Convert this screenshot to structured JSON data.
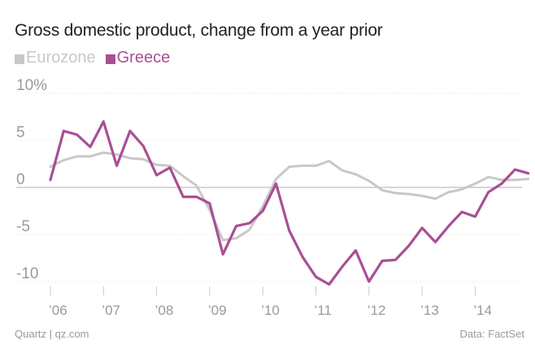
{
  "chart_data": {
    "type": "line",
    "title": "Gross domestic product, change from a year prior",
    "x_tick_labels": [
      "’06",
      "’07",
      "’08",
      "’09",
      "’10",
      "’11",
      "’12",
      "’13",
      "’14"
    ],
    "y_ticks": [
      {
        "value": 10,
        "label": "10%"
      },
      {
        "value": 5,
        "label": "5"
      },
      {
        "value": 0,
        "label": "0"
      },
      {
        "value": -5,
        "label": "-5"
      },
      {
        "value": -10,
        "label": "-10"
      }
    ],
    "ylim": [
      -12.5,
      11
    ],
    "xlim": [
      2006,
      2015.3
    ],
    "grid": "horizontal",
    "legend_position": "top-left",
    "series": [
      {
        "name": "Eurozone",
        "color": "#c8c8c8",
        "x": [
          2006.0,
          2006.25,
          2006.5,
          2006.75,
          2007.0,
          2007.25,
          2007.5,
          2007.75,
          2008.0,
          2008.25,
          2008.5,
          2008.75,
          2009.0,
          2009.25,
          2009.5,
          2009.75,
          2010.0,
          2010.25,
          2010.5,
          2010.75,
          2011.0,
          2011.25,
          2011.5,
          2011.75,
          2012.0,
          2012.25,
          2012.5,
          2012.75,
          2013.0,
          2013.25,
          2013.5,
          2013.75,
          2014.0,
          2014.25,
          2014.5,
          2014.75,
          2015.0
        ],
        "values": [
          2.2,
          2.9,
          3.3,
          3.3,
          3.7,
          3.5,
          3.1,
          3.0,
          2.4,
          2.3,
          1.2,
          0.2,
          -2.4,
          -5.6,
          -5.4,
          -4.5,
          -2.0,
          0.9,
          2.2,
          2.3,
          2.3,
          2.8,
          1.8,
          1.4,
          0.7,
          -0.3,
          -0.6,
          -0.7,
          -0.9,
          -1.2,
          -0.5,
          -0.2,
          0.4,
          1.1,
          0.8,
          0.8,
          0.9
        ]
      },
      {
        "name": "Greece",
        "color": "#a94f94",
        "x": [
          2006.0,
          2006.25,
          2006.5,
          2006.75,
          2007.0,
          2007.25,
          2007.5,
          2007.75,
          2008.0,
          2008.25,
          2008.5,
          2008.75,
          2009.0,
          2009.25,
          2009.5,
          2009.75,
          2010.0,
          2010.25,
          2010.5,
          2010.75,
          2011.0,
          2011.25,
          2011.5,
          2011.75,
          2012.0,
          2012.25,
          2012.5,
          2012.75,
          2013.0,
          2013.25,
          2013.5,
          2013.75,
          2014.0,
          2014.25,
          2014.5,
          2014.75,
          2015.0
        ],
        "values": [
          0.8,
          6.0,
          5.6,
          4.3,
          7.0,
          2.3,
          6.0,
          4.4,
          1.3,
          2.1,
          -1.0,
          -1.0,
          -1.7,
          -7.1,
          -4.1,
          -3.8,
          -2.5,
          0.4,
          -4.6,
          -7.4,
          -9.5,
          -10.3,
          -8.4,
          -6.7,
          -10.0,
          -7.8,
          -7.7,
          -6.2,
          -4.3,
          -5.8,
          -4.1,
          -2.6,
          -3.1,
          -0.5,
          0.4,
          1.9,
          1.5
        ]
      }
    ]
  },
  "footer": {
    "source_left": "Quartz | qz.com",
    "source_right": "Data: FactSet"
  }
}
